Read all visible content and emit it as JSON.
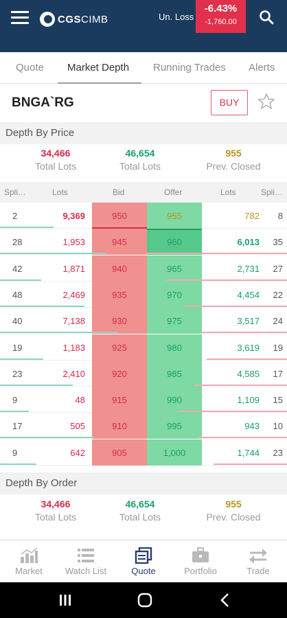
{
  "header": {
    "brand_bold": "CGS",
    "brand_light": "CIMB",
    "unloss_label": "Un. Loss",
    "unloss_pct": "-6.43%",
    "unloss_amount": "-1,760.00"
  },
  "tabs": [
    {
      "label": "Quote"
    },
    {
      "label": "Market Depth"
    },
    {
      "label": "Running Trades"
    },
    {
      "label": "Alerts"
    }
  ],
  "stock": {
    "code": "BNGA`RG",
    "buy_label": "BUY"
  },
  "depth_by_price": {
    "title": "Depth By Price",
    "total_bid_lots": "34,466",
    "total_offer_lots": "46,654",
    "prev_closed": "955",
    "total_lots_label": "Total Lots",
    "prev_closed_label": "Prev. Closed"
  },
  "columns": {
    "split_left": "Spli…",
    "lots_left": "Lots",
    "bid": "Bid",
    "offer": "Offer",
    "lots_right": "Lots",
    "split_right": "Spli…"
  },
  "rows": [
    {
      "bsplit": "2",
      "blots": "9,369",
      "bid": "950",
      "offer": "955",
      "olots": "782",
      "osplit": "8"
    },
    {
      "bsplit": "28",
      "blots": "1,953",
      "bid": "945",
      "offer": "960",
      "olots": "6,013",
      "osplit": "35"
    },
    {
      "bsplit": "42",
      "blots": "1,871",
      "bid": "940",
      "offer": "965",
      "olots": "2,731",
      "osplit": "27"
    },
    {
      "bsplit": "48",
      "blots": "2,469",
      "bid": "935",
      "offer": "970",
      "olots": "4,454",
      "osplit": "22"
    },
    {
      "bsplit": "40",
      "blots": "7,138",
      "bid": "930",
      "offer": "975",
      "olots": "3,517",
      "osplit": "24"
    },
    {
      "bsplit": "19",
      "blots": "1,183",
      "bid": "925",
      "offer": "980",
      "olots": "3,619",
      "osplit": "19"
    },
    {
      "bsplit": "23",
      "blots": "2,410",
      "bid": "920",
      "offer": "985",
      "olots": "4,585",
      "osplit": "17"
    },
    {
      "bsplit": "9",
      "blots": "48",
      "bid": "915",
      "offer": "990",
      "olots": "1,109",
      "osplit": "15"
    },
    {
      "bsplit": "17",
      "blots": "505",
      "bid": "910",
      "offer": "995",
      "olots": "943",
      "osplit": "10"
    },
    {
      "bsplit": "9",
      "blots": "642",
      "bid": "905",
      "offer": "1,000",
      "olots": "1,744",
      "osplit": "23"
    }
  ],
  "depth_by_order": {
    "title": "Depth By Order",
    "total_bid_lots": "34,466",
    "total_offer_lots": "46,654",
    "prev_closed": "955",
    "total_lots_label": "Total Lots",
    "prev_closed_label": "Prev. Closed"
  },
  "bottom_nav": [
    {
      "label": "Market",
      "icon": "bar-chart-icon"
    },
    {
      "label": "Watch List",
      "icon": "list-icon"
    },
    {
      "label": "Quote",
      "icon": "quote-icon"
    },
    {
      "label": "Portfolio",
      "icon": "briefcase-icon"
    },
    {
      "label": "Trade",
      "icon": "swap-arrows-icon"
    }
  ],
  "colors": {
    "header": "#1b3b5e",
    "loss": "#e0304b",
    "bid": "#f0918f",
    "offer": "#7ed9a3"
  }
}
